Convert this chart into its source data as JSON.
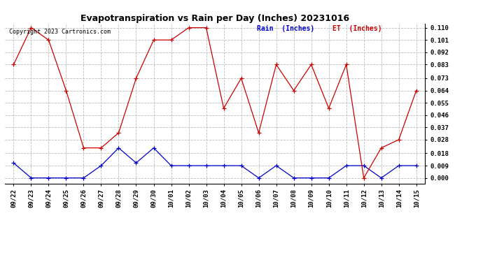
{
  "title": "Evapotranspiration vs Rain per Day (Inches) 20231016",
  "copyright": "Copyright 2023 Cartronics.com",
  "legend_rain": "Rain  (Inches)",
  "legend_et": "ET  (Inches)",
  "dates": [
    "09/22",
    "09/23",
    "09/24",
    "09/25",
    "09/26",
    "09/27",
    "09/28",
    "09/29",
    "09/30",
    "10/01",
    "10/02",
    "10/03",
    "10/04",
    "10/05",
    "10/06",
    "10/07",
    "10/08",
    "10/09",
    "10/10",
    "10/11",
    "10/12",
    "10/13",
    "10/14",
    "10/15"
  ],
  "rain": [
    0.011,
    0.0,
    0.0,
    0.0,
    0.0,
    0.009,
    0.022,
    0.011,
    0.022,
    0.009,
    0.009,
    0.009,
    0.009,
    0.009,
    0.0,
    0.009,
    0.0,
    0.0,
    0.0,
    0.009,
    0.009,
    0.0,
    0.009,
    0.009
  ],
  "et": [
    0.083,
    0.11,
    0.101,
    0.064,
    0.022,
    0.022,
    0.033,
    0.073,
    0.101,
    0.101,
    0.11,
    0.11,
    0.051,
    0.073,
    0.033,
    0.083,
    0.064,
    0.083,
    0.051,
    0.083,
    0.0,
    0.022,
    0.028,
    0.064
  ],
  "rain_color": "#0000cc",
  "et_color": "#cc0000",
  "grid_color": "#bbbbbb",
  "background_color": "#ffffff",
  "title_color": "#000000",
  "copyright_color": "#000000",
  "ylim_min": -0.004,
  "ylim_max": 0.113,
  "yticks": [
    0.0,
    0.009,
    0.018,
    0.028,
    0.037,
    0.046,
    0.055,
    0.064,
    0.073,
    0.083,
    0.092,
    0.101,
    0.11
  ],
  "title_fontsize": 9,
  "tick_fontsize": 6.5,
  "copyright_fontsize": 6,
  "legend_fontsize": 7
}
